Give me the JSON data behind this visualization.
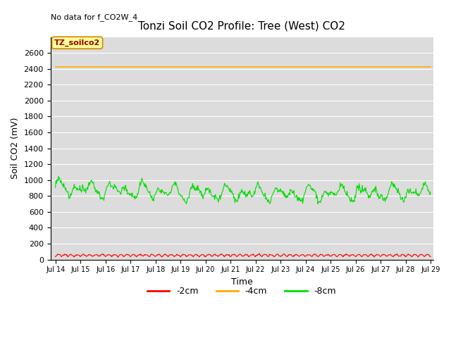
{
  "title": "Tonzi Soil CO2 Profile: Tree (West) CO2",
  "no_data_label": "No data for f_CO2W_4",
  "tz_label": "TZ_soilco2",
  "ylabel": "Soil CO2 (mV)",
  "xlabel": "Time",
  "ylim": [
    0,
    2800
  ],
  "yticks": [
    0,
    200,
    400,
    600,
    800,
    1000,
    1200,
    1400,
    1600,
    1800,
    2000,
    2200,
    2400,
    2600
  ],
  "x_start_day": 14,
  "x_end_day": 29,
  "x_tick_days": [
    14,
    15,
    16,
    17,
    18,
    19,
    20,
    21,
    22,
    23,
    24,
    25,
    26,
    27,
    28,
    29
  ],
  "orange_value": 2420,
  "line_colors": {
    "red": "#ff0000",
    "orange": "#ffaa00",
    "green": "#00dd00"
  },
  "legend_labels": [
    "-2cm",
    "-4cm",
    "-8cm"
  ],
  "bg_color": "#dcdcdc",
  "grid_color": "#ffffff",
  "title_fontsize": 11,
  "axis_label_fontsize": 9,
  "tick_fontsize": 8,
  "n_points": 720
}
